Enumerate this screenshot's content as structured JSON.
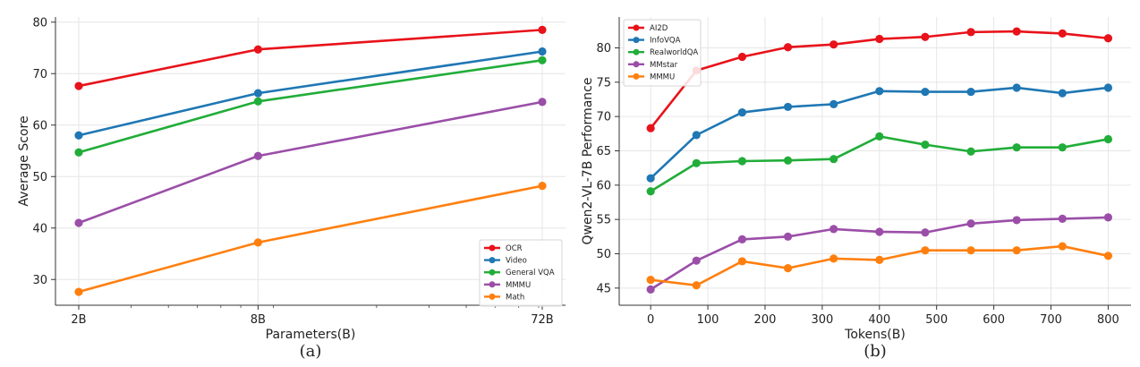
{
  "chart_data": [
    {
      "type": "line",
      "caption": "(a)",
      "xlabel": "Parameters(B)",
      "ylabel": "Average Score",
      "xscale": "log",
      "categories": [
        "2B",
        "8B",
        "72B"
      ],
      "x": [
        2,
        8,
        72
      ],
      "ylim": [
        25,
        81
      ],
      "yticks": [
        30,
        40,
        50,
        60,
        70,
        80
      ],
      "grid": true,
      "legend_position": "bottom-right",
      "series": [
        {
          "name": "OCR",
          "color": "#e8121a",
          "values": [
            67.6,
            74.7,
            78.5
          ]
        },
        {
          "name": "Video",
          "color": "#1f77b4",
          "values": [
            58.0,
            66.2,
            74.3
          ]
        },
        {
          "name": "General VQA",
          "color": "#21ad39",
          "values": [
            54.7,
            64.6,
            72.6
          ]
        },
        {
          "name": "MMMU",
          "color": "#9b4ea8",
          "values": [
            41.0,
            54.0,
            64.5
          ]
        },
        {
          "name": "Math",
          "color": "#ff7f0e",
          "values": [
            27.6,
            37.2,
            48.2
          ]
        }
      ]
    },
    {
      "type": "line",
      "caption": "(b)",
      "xlabel": "Tokens(B)",
      "ylabel": "Qwen2-VL-7B Performance",
      "x": [
        0,
        80,
        160,
        240,
        320,
        400,
        480,
        560,
        640,
        720,
        800
      ],
      "xlim": [
        -55,
        840
      ],
      "xticks": [
        0,
        100,
        200,
        300,
        400,
        500,
        600,
        700,
        800
      ],
      "ylim": [
        42.5,
        84.5
      ],
      "yticks": [
        45,
        50,
        55,
        60,
        65,
        70,
        75,
        80
      ],
      "grid": true,
      "legend_position": "top-left",
      "series": [
        {
          "name": "AI2D",
          "color": "#e8121a",
          "values": [
            68.3,
            76.7,
            78.7,
            80.1,
            80.5,
            81.3,
            81.6,
            82.3,
            82.4,
            82.1,
            81.4
          ]
        },
        {
          "name": "InfoVQA",
          "color": "#1f77b4",
          "values": [
            61.0,
            67.3,
            70.6,
            71.4,
            71.8,
            73.7,
            73.6,
            73.6,
            74.2,
            73.4,
            74.2
          ]
        },
        {
          "name": "RealworldQA",
          "color": "#21ad39",
          "values": [
            59.1,
            63.2,
            63.5,
            63.6,
            63.8,
            67.1,
            65.9,
            64.9,
            65.5,
            65.5,
            66.7
          ]
        },
        {
          "name": "MMstar",
          "color": "#9b4ea8",
          "values": [
            44.8,
            49.0,
            52.1,
            52.5,
            53.6,
            53.2,
            53.1,
            54.4,
            54.9,
            55.1,
            55.3
          ]
        },
        {
          "name": "MMMU",
          "color": "#ff7f0e",
          "values": [
            46.2,
            45.4,
            48.9,
            47.9,
            49.3,
            49.1,
            50.5,
            50.5,
            50.5,
            51.1,
            49.7
          ]
        }
      ]
    }
  ]
}
